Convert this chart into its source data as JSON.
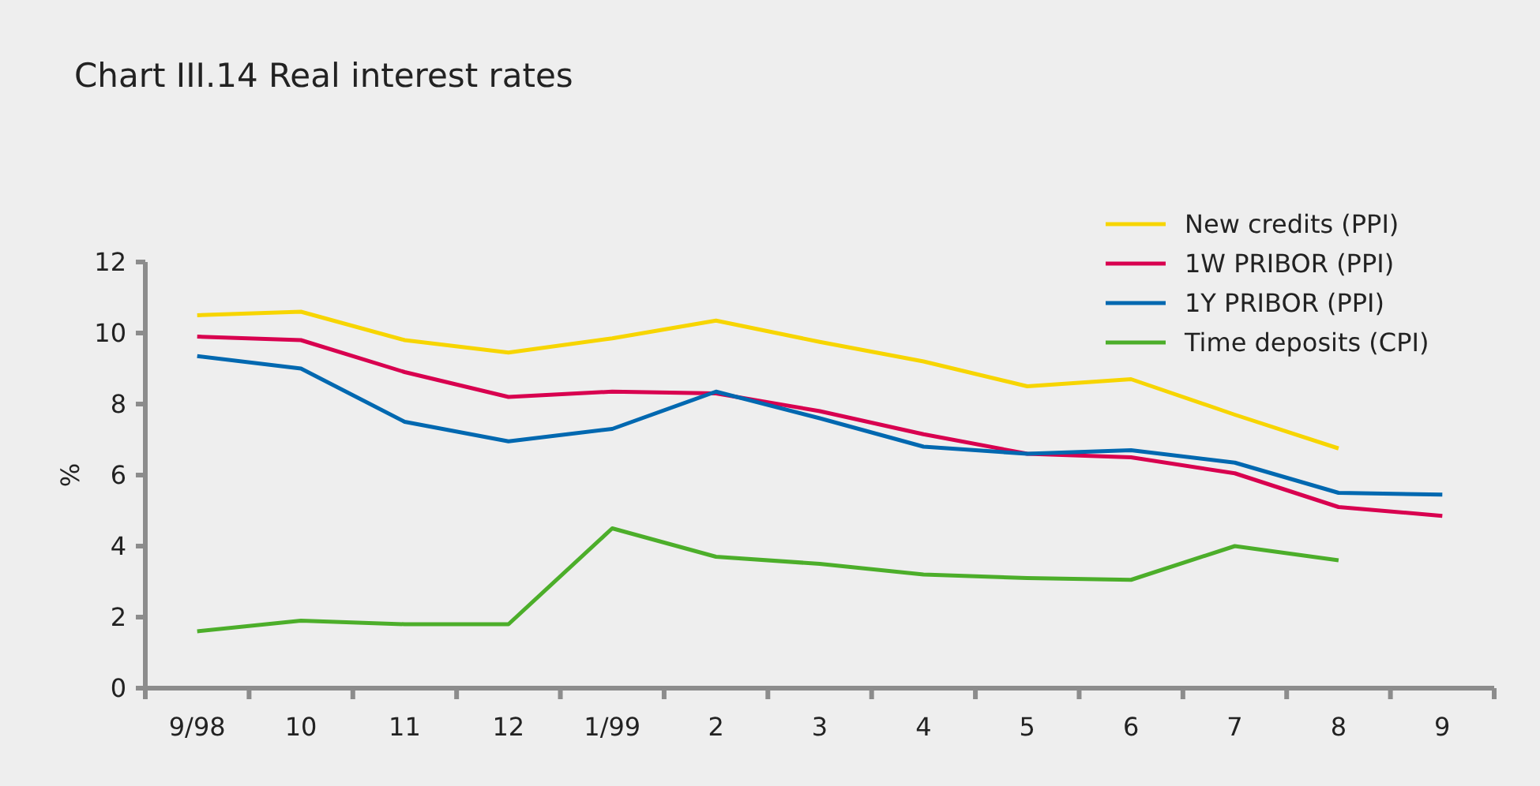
{
  "chart_data": {
    "type": "line",
    "title": "Chart III.14 Real interest rates",
    "ylabel": "%",
    "categories": [
      "9/98",
      "10",
      "11",
      "12",
      "1/99",
      "2",
      "3",
      "4",
      "5",
      "6",
      "7",
      "8",
      "9"
    ],
    "ylim": [
      0,
      12
    ],
    "yticks": [
      0,
      2,
      4,
      6,
      8,
      10,
      12
    ],
    "grid": false,
    "legend": "top right",
    "marker": "none",
    "line_style": "solid",
    "series": [
      {
        "name": "New credits (PPI)",
        "color": "#f7d500",
        "values": [
          10.5,
          10.6,
          9.8,
          9.45,
          9.85,
          10.35,
          9.75,
          9.2,
          8.5,
          8.7,
          7.7,
          6.75,
          null
        ]
      },
      {
        "name": "1W PRIBOR (PPI)",
        "color": "#d8004f",
        "values": [
          9.9,
          9.8,
          8.9,
          8.2,
          8.35,
          8.3,
          7.8,
          7.15,
          6.6,
          6.5,
          6.05,
          5.1,
          4.85
        ]
      },
      {
        "name": "1Y PRIBOR (PPI)",
        "color": "#0068b0",
        "values": [
          9.35,
          9.0,
          7.5,
          6.95,
          7.3,
          8.35,
          7.6,
          6.8,
          6.6,
          6.7,
          6.35,
          5.5,
          5.45
        ]
      },
      {
        "name": "Time deposits (CPI)",
        "color": "#4cae2a",
        "values": [
          1.6,
          1.9,
          1.8,
          1.8,
          4.5,
          3.7,
          3.5,
          3.2,
          3.1,
          3.05,
          4.0,
          3.6,
          null
        ]
      }
    ]
  }
}
